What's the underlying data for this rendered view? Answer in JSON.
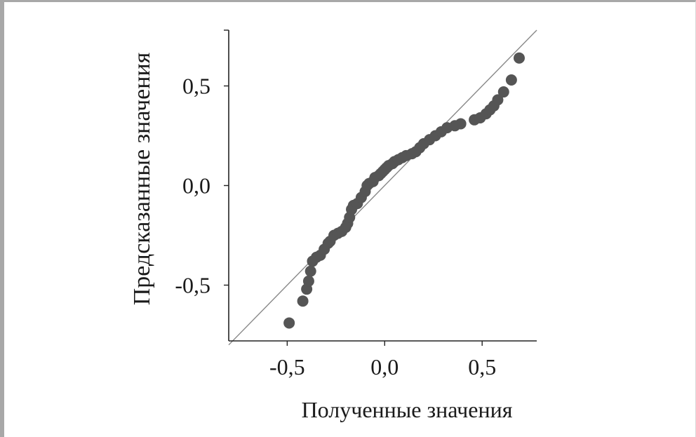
{
  "chart_data": {
    "type": "scatter",
    "title": "",
    "xlabel": "Полученные значения",
    "ylabel": "Предсказанные значения",
    "xlim": [
      -0.8,
      0.78
    ],
    "ylim": [
      -0.78,
      0.78
    ],
    "xticks": [
      -0.5,
      0.0,
      0.5
    ],
    "yticks": [
      -0.5,
      0.0,
      0.5
    ],
    "xtick_labels": [
      "-0,5",
      "0,0",
      "0,5"
    ],
    "ytick_labels": [
      "-0,5",
      "0,0",
      "0,5"
    ],
    "grid": false,
    "legend": "none",
    "reference_line": {
      "from": [
        -0.8,
        -0.8
      ],
      "to": [
        0.78,
        0.78
      ],
      "color": "#888888"
    },
    "point_color": "#555555",
    "series": [
      {
        "points": [
          [
            -0.49,
            -0.69
          ],
          [
            -0.42,
            -0.58
          ],
          [
            -0.4,
            -0.52
          ],
          [
            -0.39,
            -0.48
          ],
          [
            -0.38,
            -0.43
          ],
          [
            -0.37,
            -0.38
          ],
          [
            -0.35,
            -0.36
          ],
          [
            -0.33,
            -0.35
          ],
          [
            -0.31,
            -0.32
          ],
          [
            -0.29,
            -0.29
          ],
          [
            -0.28,
            -0.28
          ],
          [
            -0.26,
            -0.25
          ],
          [
            -0.24,
            -0.24
          ],
          [
            -0.22,
            -0.23
          ],
          [
            -0.2,
            -0.21
          ],
          [
            -0.19,
            -0.19
          ],
          [
            -0.18,
            -0.16
          ],
          [
            -0.17,
            -0.12
          ],
          [
            -0.16,
            -0.1
          ],
          [
            -0.14,
            -0.09
          ],
          [
            -0.12,
            -0.06
          ],
          [
            -0.1,
            -0.03
          ],
          [
            -0.09,
            0.0
          ],
          [
            -0.08,
            0.01
          ],
          [
            -0.06,
            0.02
          ],
          [
            -0.05,
            0.04
          ],
          [
            -0.03,
            0.05
          ],
          [
            -0.02,
            0.06
          ],
          [
            -0.01,
            0.07
          ],
          [
            0.0,
            0.08
          ],
          [
            0.01,
            0.09
          ],
          [
            0.02,
            0.1
          ],
          [
            0.04,
            0.11
          ],
          [
            0.05,
            0.12
          ],
          [
            0.07,
            0.13
          ],
          [
            0.09,
            0.14
          ],
          [
            0.11,
            0.15
          ],
          [
            0.14,
            0.16
          ],
          [
            0.16,
            0.17
          ],
          [
            0.18,
            0.19
          ],
          [
            0.2,
            0.21
          ],
          [
            0.23,
            0.23
          ],
          [
            0.26,
            0.25
          ],
          [
            0.29,
            0.27
          ],
          [
            0.32,
            0.29
          ],
          [
            0.36,
            0.3
          ],
          [
            0.39,
            0.31
          ],
          [
            0.46,
            0.33
          ],
          [
            0.49,
            0.34
          ],
          [
            0.52,
            0.36
          ],
          [
            0.54,
            0.38
          ],
          [
            0.56,
            0.4
          ],
          [
            0.58,
            0.43
          ],
          [
            0.61,
            0.47
          ],
          [
            0.65,
            0.53
          ],
          [
            0.69,
            0.64
          ]
        ]
      }
    ]
  }
}
